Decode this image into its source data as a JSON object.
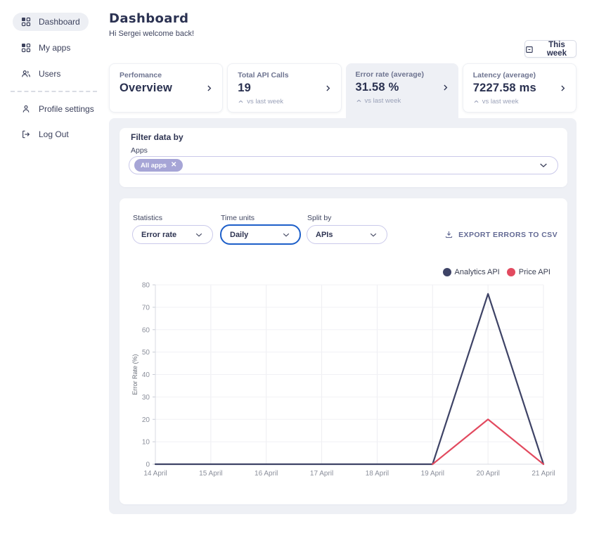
{
  "sidebar": {
    "items": [
      {
        "label": "Dashboard",
        "active": true
      },
      {
        "label": "My apps"
      },
      {
        "label": "Users"
      },
      {
        "label": "Profile settings"
      },
      {
        "label": "Log Out"
      }
    ]
  },
  "header": {
    "title": "Dashboard",
    "greeting": "Hi Sergei welcome back!",
    "period_button": "This week"
  },
  "cards": [
    {
      "label": "Perfomance",
      "value": "Overview"
    },
    {
      "label": "Total API Calls",
      "value": "19",
      "delta": "vs last week"
    },
    {
      "label": "Error rate (average)",
      "value": "31.58 %",
      "delta": "vs last week",
      "selected": true
    },
    {
      "label": "Latency (average)",
      "value": "7227.58 ms",
      "delta": "vs last week"
    }
  ],
  "filter": {
    "title": "Filter data by",
    "apps_label": "Apps",
    "chip_label": "All apps",
    "chip_close": "✕"
  },
  "controls": {
    "statistics": {
      "label": "Statistics",
      "value": "Error rate"
    },
    "time_units": {
      "label": "Time units",
      "value": "Daily"
    },
    "split_by": {
      "label": "Split by",
      "value": "APIs"
    },
    "export_label": "EXPORT ERRORS TO CSV"
  },
  "colors": {
    "accent_blue": "#1d5fc9",
    "chip_purple": "#a6a5d6",
    "panel_gray": "#eef0f5"
  },
  "chart_data": {
    "type": "line",
    "title": "",
    "xlabel": "",
    "ylabel": "Error Rate (%)",
    "categories": [
      "14 April",
      "15 April",
      "16 April",
      "17 April",
      "18 April",
      "19 April",
      "20 April",
      "21 April"
    ],
    "y_ticks": [
      0,
      10,
      20,
      30,
      40,
      50,
      60,
      70,
      80
    ],
    "ylim": [
      0,
      80
    ],
    "grid": true,
    "legend_position": "top-right",
    "series": [
      {
        "name": "Analytics API",
        "color": "#3e4366",
        "values": [
          0,
          0,
          0,
          0,
          0,
          0,
          76,
          0
        ]
      },
      {
        "name": "Price API",
        "color": "#e24a5f",
        "values": [
          null,
          null,
          null,
          null,
          null,
          0,
          20,
          0
        ]
      }
    ]
  }
}
